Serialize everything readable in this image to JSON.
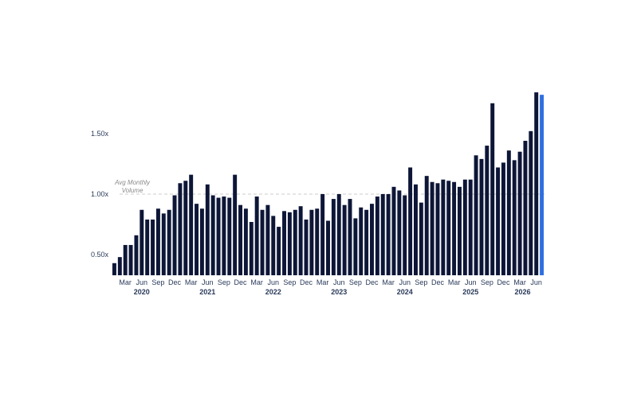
{
  "chart_data": {
    "type": "bar",
    "title": "",
    "xlabel": "",
    "ylabel": "",
    "ylim": [
      0.33,
      1.88
    ],
    "yticks": [
      {
        "value": 0.5,
        "label": "0.50x"
      },
      {
        "value": 1.0,
        "label": "1.00x"
      },
      {
        "value": 1.5,
        "label": "1.50x"
      }
    ],
    "reference_line": {
      "value": 1.0,
      "label_line1": "Avg Monthly",
      "label_line2": "Volume",
      "style": "dashed"
    },
    "colors": {
      "bar": "#0d1637",
      "highlight": "#2f6fe0",
      "refline": "#cccccc"
    },
    "grid": false,
    "month_ticks": [
      {
        "index": 2,
        "label": "Mar"
      },
      {
        "index": 5,
        "label": "Jun"
      },
      {
        "index": 8,
        "label": "Sep"
      },
      {
        "index": 11,
        "label": "Dec"
      },
      {
        "index": 14,
        "label": "Mar"
      },
      {
        "index": 17,
        "label": "Jun"
      },
      {
        "index": 20,
        "label": "Sep"
      },
      {
        "index": 23,
        "label": "Dec"
      },
      {
        "index": 26,
        "label": "Mar"
      },
      {
        "index": 29,
        "label": "Jun"
      },
      {
        "index": 32,
        "label": "Sep"
      },
      {
        "index": 35,
        "label": "Dec"
      },
      {
        "index": 38,
        "label": "Mar"
      },
      {
        "index": 41,
        "label": "Jun"
      },
      {
        "index": 44,
        "label": "Sep"
      },
      {
        "index": 47,
        "label": "Dec"
      },
      {
        "index": 50,
        "label": "Mar"
      },
      {
        "index": 53,
        "label": "Jun"
      },
      {
        "index": 56,
        "label": "Sep"
      },
      {
        "index": 59,
        "label": "Dec"
      },
      {
        "index": 62,
        "label": "Mar"
      },
      {
        "index": 65,
        "label": "Jun"
      },
      {
        "index": 68,
        "label": "Sep"
      },
      {
        "index": 71,
        "label": "Dec"
      },
      {
        "index": 74,
        "label": "Mar"
      },
      {
        "index": 77,
        "label": "Jun"
      }
    ],
    "year_ticks": [
      {
        "index": 5,
        "label": "2020"
      },
      {
        "index": 17,
        "label": "2021"
      },
      {
        "index": 29,
        "label": "2022"
      },
      {
        "index": 41,
        "label": "2023"
      },
      {
        "index": 53,
        "label": "2024"
      },
      {
        "index": 65,
        "label": "2025"
      },
      {
        "index": 74.5,
        "label": "2026"
      }
    ],
    "highlight_index": 78,
    "values": [
      0.43,
      0.48,
      0.58,
      0.58,
      0.66,
      0.87,
      0.79,
      0.79,
      0.88,
      0.84,
      0.87,
      0.99,
      1.09,
      1.11,
      1.16,
      0.92,
      0.88,
      1.08,
      0.99,
      0.97,
      0.98,
      0.97,
      1.16,
      0.91,
      0.88,
      0.77,
      0.98,
      0.87,
      0.91,
      0.82,
      0.73,
      0.86,
      0.85,
      0.87,
      0.9,
      0.79,
      0.87,
      0.88,
      1.0,
      0.78,
      0.96,
      1.0,
      0.91,
      0.96,
      0.8,
      0.89,
      0.87,
      0.92,
      0.98,
      1.0,
      1.0,
      1.06,
      1.03,
      0.99,
      1.22,
      1.08,
      0.93,
      1.15,
      1.1,
      1.09,
      1.12,
      1.11,
      1.1,
      1.06,
      1.12,
      1.12,
      1.32,
      1.29,
      1.4,
      1.75,
      1.22,
      1.26,
      1.36,
      1.28,
      1.35,
      1.44,
      1.52,
      1.84,
      1.82
    ]
  }
}
